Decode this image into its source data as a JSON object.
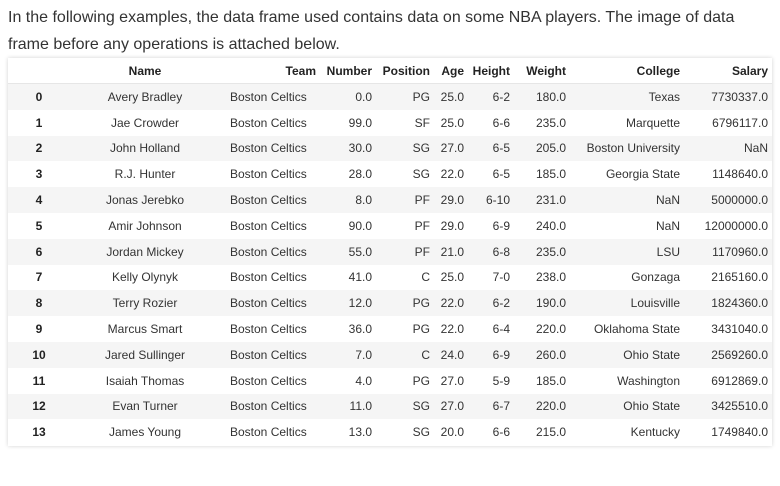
{
  "intro_text": "In the following examples, the data frame used contains data on some NBA players. The image of data frame before any operations is attached below.",
  "table": {
    "columns": [
      "",
      "Name",
      "Team",
      "Number",
      "Position",
      "Age",
      "Height",
      "Weight",
      "College",
      "Salary"
    ],
    "rows": [
      [
        "0",
        "Avery Bradley",
        "Boston Celtics",
        "0.0",
        "PG",
        "25.0",
        "6-2",
        "180.0",
        "Texas",
        "7730337.0"
      ],
      [
        "1",
        "Jae Crowder",
        "Boston Celtics",
        "99.0",
        "SF",
        "25.0",
        "6-6",
        "235.0",
        "Marquette",
        "6796117.0"
      ],
      [
        "2",
        "John Holland",
        "Boston Celtics",
        "30.0",
        "SG",
        "27.0",
        "6-5",
        "205.0",
        "Boston University",
        "NaN"
      ],
      [
        "3",
        "R.J. Hunter",
        "Boston Celtics",
        "28.0",
        "SG",
        "22.0",
        "6-5",
        "185.0",
        "Georgia State",
        "1148640.0"
      ],
      [
        "4",
        "Jonas Jerebko",
        "Boston Celtics",
        "8.0",
        "PF",
        "29.0",
        "6-10",
        "231.0",
        "NaN",
        "5000000.0"
      ],
      [
        "5",
        "Amir Johnson",
        "Boston Celtics",
        "90.0",
        "PF",
        "29.0",
        "6-9",
        "240.0",
        "NaN",
        "12000000.0"
      ],
      [
        "6",
        "Jordan Mickey",
        "Boston Celtics",
        "55.0",
        "PF",
        "21.0",
        "6-8",
        "235.0",
        "LSU",
        "1170960.0"
      ],
      [
        "7",
        "Kelly Olynyk",
        "Boston Celtics",
        "41.0",
        "C",
        "25.0",
        "7-0",
        "238.0",
        "Gonzaga",
        "2165160.0"
      ],
      [
        "8",
        "Terry Rozier",
        "Boston Celtics",
        "12.0",
        "PG",
        "22.0",
        "6-2",
        "190.0",
        "Louisville",
        "1824360.0"
      ],
      [
        "9",
        "Marcus Smart",
        "Boston Celtics",
        "36.0",
        "PG",
        "22.0",
        "6-4",
        "220.0",
        "Oklahoma State",
        "3431040.0"
      ],
      [
        "10",
        "Jared Sullinger",
        "Boston Celtics",
        "7.0",
        "C",
        "24.0",
        "6-9",
        "260.0",
        "Ohio State",
        "2569260.0"
      ],
      [
        "11",
        "Isaiah Thomas",
        "Boston Celtics",
        "4.0",
        "PG",
        "27.0",
        "5-9",
        "185.0",
        "Washington",
        "6912869.0"
      ],
      [
        "12",
        "Evan Turner",
        "Boston Celtics",
        "11.0",
        "SG",
        "27.0",
        "6-7",
        "220.0",
        "Ohio State",
        "3425510.0"
      ],
      [
        "13",
        "James Young",
        "Boston Celtics",
        "13.0",
        "SG",
        "20.0",
        "6-6",
        "215.0",
        "Kentucky",
        "1749840.0"
      ]
    ]
  }
}
